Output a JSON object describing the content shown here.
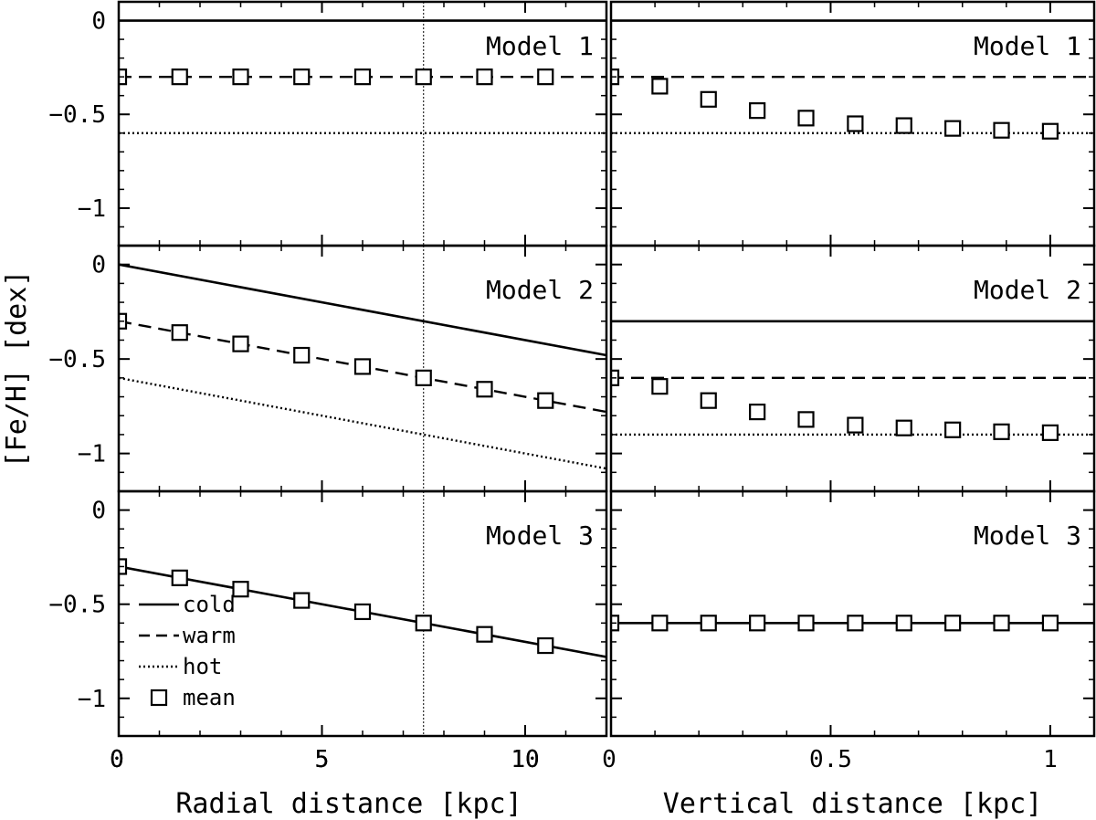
{
  "chart_data": [
    {
      "type": "line",
      "panel": "radial",
      "model_label": "Model 1",
      "xlabel": "",
      "ylabel": "",
      "xlim": [
        0,
        12
      ],
      "ylim": [
        -1.2,
        0.1
      ],
      "xticks": [
        "0",
        "5",
        "10"
      ],
      "yticks": [
        "0",
        "-0.5",
        "-1"
      ],
      "vline_x": 7.5,
      "series": [
        {
          "name": "cold",
          "style": "solid",
          "x": [
            0,
            12
          ],
          "y": [
            0,
            0
          ]
        },
        {
          "name": "warm",
          "style": "dashed",
          "x": [
            0,
            12
          ],
          "y": [
            -0.3,
            -0.3
          ]
        },
        {
          "name": "hot",
          "style": "dotted",
          "x": [
            0,
            12
          ],
          "y": [
            -0.6,
            -0.6
          ]
        },
        {
          "name": "mean",
          "style": "marker",
          "x": [
            0,
            1.5,
            3,
            4.5,
            6,
            7.5,
            9,
            10.5
          ],
          "y": [
            -0.3,
            -0.3,
            -0.3,
            -0.3,
            -0.3,
            -0.3,
            -0.3,
            -0.3
          ]
        }
      ]
    },
    {
      "type": "line",
      "panel": "vertical",
      "model_label": "Model 1",
      "xlabel": "",
      "ylabel": "",
      "xlim": [
        0,
        1.1
      ],
      "ylim": [
        -1.2,
        0.1
      ],
      "series": [
        {
          "name": "cold",
          "style": "solid",
          "x": [
            0,
            1.1
          ],
          "y": [
            0,
            0
          ]
        },
        {
          "name": "warm",
          "style": "dashed",
          "x": [
            0,
            1.1
          ],
          "y": [
            -0.3,
            -0.3
          ]
        },
        {
          "name": "hot",
          "style": "dotted",
          "x": [
            0,
            1.1
          ],
          "y": [
            -0.6,
            -0.6
          ]
        },
        {
          "name": "mean",
          "style": "marker",
          "x": [
            0,
            0.111,
            0.222,
            0.333,
            0.444,
            0.556,
            0.667,
            0.778,
            0.889,
            1.0
          ],
          "y": [
            -0.3,
            -0.35,
            -0.42,
            -0.48,
            -0.52,
            -0.55,
            -0.56,
            -0.575,
            -0.585,
            -0.59
          ]
        }
      ]
    },
    {
      "type": "line",
      "panel": "radial",
      "model_label": "Model 2",
      "xlabel": "",
      "ylabel": "[Fe/H] [dex]",
      "xlim": [
        0,
        12
      ],
      "ylim": [
        -1.2,
        0.1
      ],
      "xticks": [
        "0",
        "5",
        "10"
      ],
      "yticks": [
        "0",
        "-0.5",
        "-1"
      ],
      "vline_x": 7.5,
      "series": [
        {
          "name": "cold",
          "style": "solid",
          "x": [
            0,
            12
          ],
          "y": [
            0,
            -0.48
          ]
        },
        {
          "name": "warm",
          "style": "dashed",
          "x": [
            0,
            12
          ],
          "y": [
            -0.3,
            -0.78
          ]
        },
        {
          "name": "hot",
          "style": "dotted",
          "x": [
            0,
            12
          ],
          "y": [
            -0.6,
            -1.08
          ]
        },
        {
          "name": "mean",
          "style": "marker",
          "x": [
            0,
            1.5,
            3,
            4.5,
            6,
            7.5,
            9,
            10.5
          ],
          "y": [
            -0.3,
            -0.36,
            -0.42,
            -0.48,
            -0.54,
            -0.6,
            -0.66,
            -0.72
          ]
        }
      ]
    },
    {
      "type": "line",
      "panel": "vertical",
      "model_label": "Model 2",
      "xlabel": "",
      "ylabel": "",
      "xlim": [
        0,
        1.1
      ],
      "ylim": [
        -1.2,
        0.1
      ],
      "series": [
        {
          "name": "cold",
          "style": "solid",
          "x": [
            0,
            1.1
          ],
          "y": [
            -0.3,
            -0.3
          ]
        },
        {
          "name": "warm",
          "style": "dashed",
          "x": [
            0,
            1.1
          ],
          "y": [
            -0.6,
            -0.6
          ]
        },
        {
          "name": "hot",
          "style": "dotted",
          "x": [
            0,
            1.1
          ],
          "y": [
            -0.9,
            -0.9
          ]
        },
        {
          "name": "mean",
          "style": "marker",
          "x": [
            0,
            0.111,
            0.222,
            0.333,
            0.444,
            0.556,
            0.667,
            0.778,
            0.889,
            1.0
          ],
          "y": [
            -0.6,
            -0.645,
            -0.72,
            -0.78,
            -0.82,
            -0.85,
            -0.865,
            -0.875,
            -0.885,
            -0.89
          ]
        }
      ]
    },
    {
      "type": "line",
      "panel": "radial",
      "model_label": "Model 3",
      "xlabel": "Radial distance [kpc]",
      "ylabel": "",
      "xlim": [
        0,
        12
      ],
      "ylim": [
        -1.2,
        0.1
      ],
      "xticks": [
        "0",
        "5",
        "10"
      ],
      "yticks": [
        "0",
        "-0.5",
        "-1"
      ],
      "vline_x": 7.5,
      "legend": {
        "placement": "bottom-left",
        "entries": [
          "cold",
          "warm",
          "hot",
          "mean"
        ]
      },
      "series": [
        {
          "name": "cold",
          "style": "solid",
          "x": [
            0,
            12
          ],
          "y": [
            -0.3,
            -0.78
          ]
        },
        {
          "name": "mean",
          "style": "marker",
          "x": [
            0,
            1.5,
            3,
            4.5,
            6,
            7.5,
            9,
            10.5
          ],
          "y": [
            -0.3,
            -0.36,
            -0.42,
            -0.48,
            -0.54,
            -0.6,
            -0.66,
            -0.72
          ]
        }
      ]
    },
    {
      "type": "line",
      "panel": "vertical",
      "model_label": "Model 3",
      "xlabel": "Vertical distance [kpc]",
      "ylabel": "",
      "xlim": [
        0,
        1.1
      ],
      "ylim": [
        -1.2,
        0.1
      ],
      "xticks": [
        "0",
        "0.5",
        "1"
      ],
      "series": [
        {
          "name": "cold",
          "style": "solid",
          "x": [
            0,
            1.1
          ],
          "y": [
            -0.6,
            -0.6
          ]
        },
        {
          "name": "mean",
          "style": "marker",
          "x": [
            0,
            0.111,
            0.222,
            0.333,
            0.444,
            0.556,
            0.667,
            0.778,
            0.889,
            1.0
          ],
          "y": [
            -0.6,
            -0.6,
            -0.6,
            -0.6,
            -0.6,
            -0.6,
            -0.6,
            -0.6,
            -0.6,
            -0.6
          ]
        }
      ]
    }
  ]
}
